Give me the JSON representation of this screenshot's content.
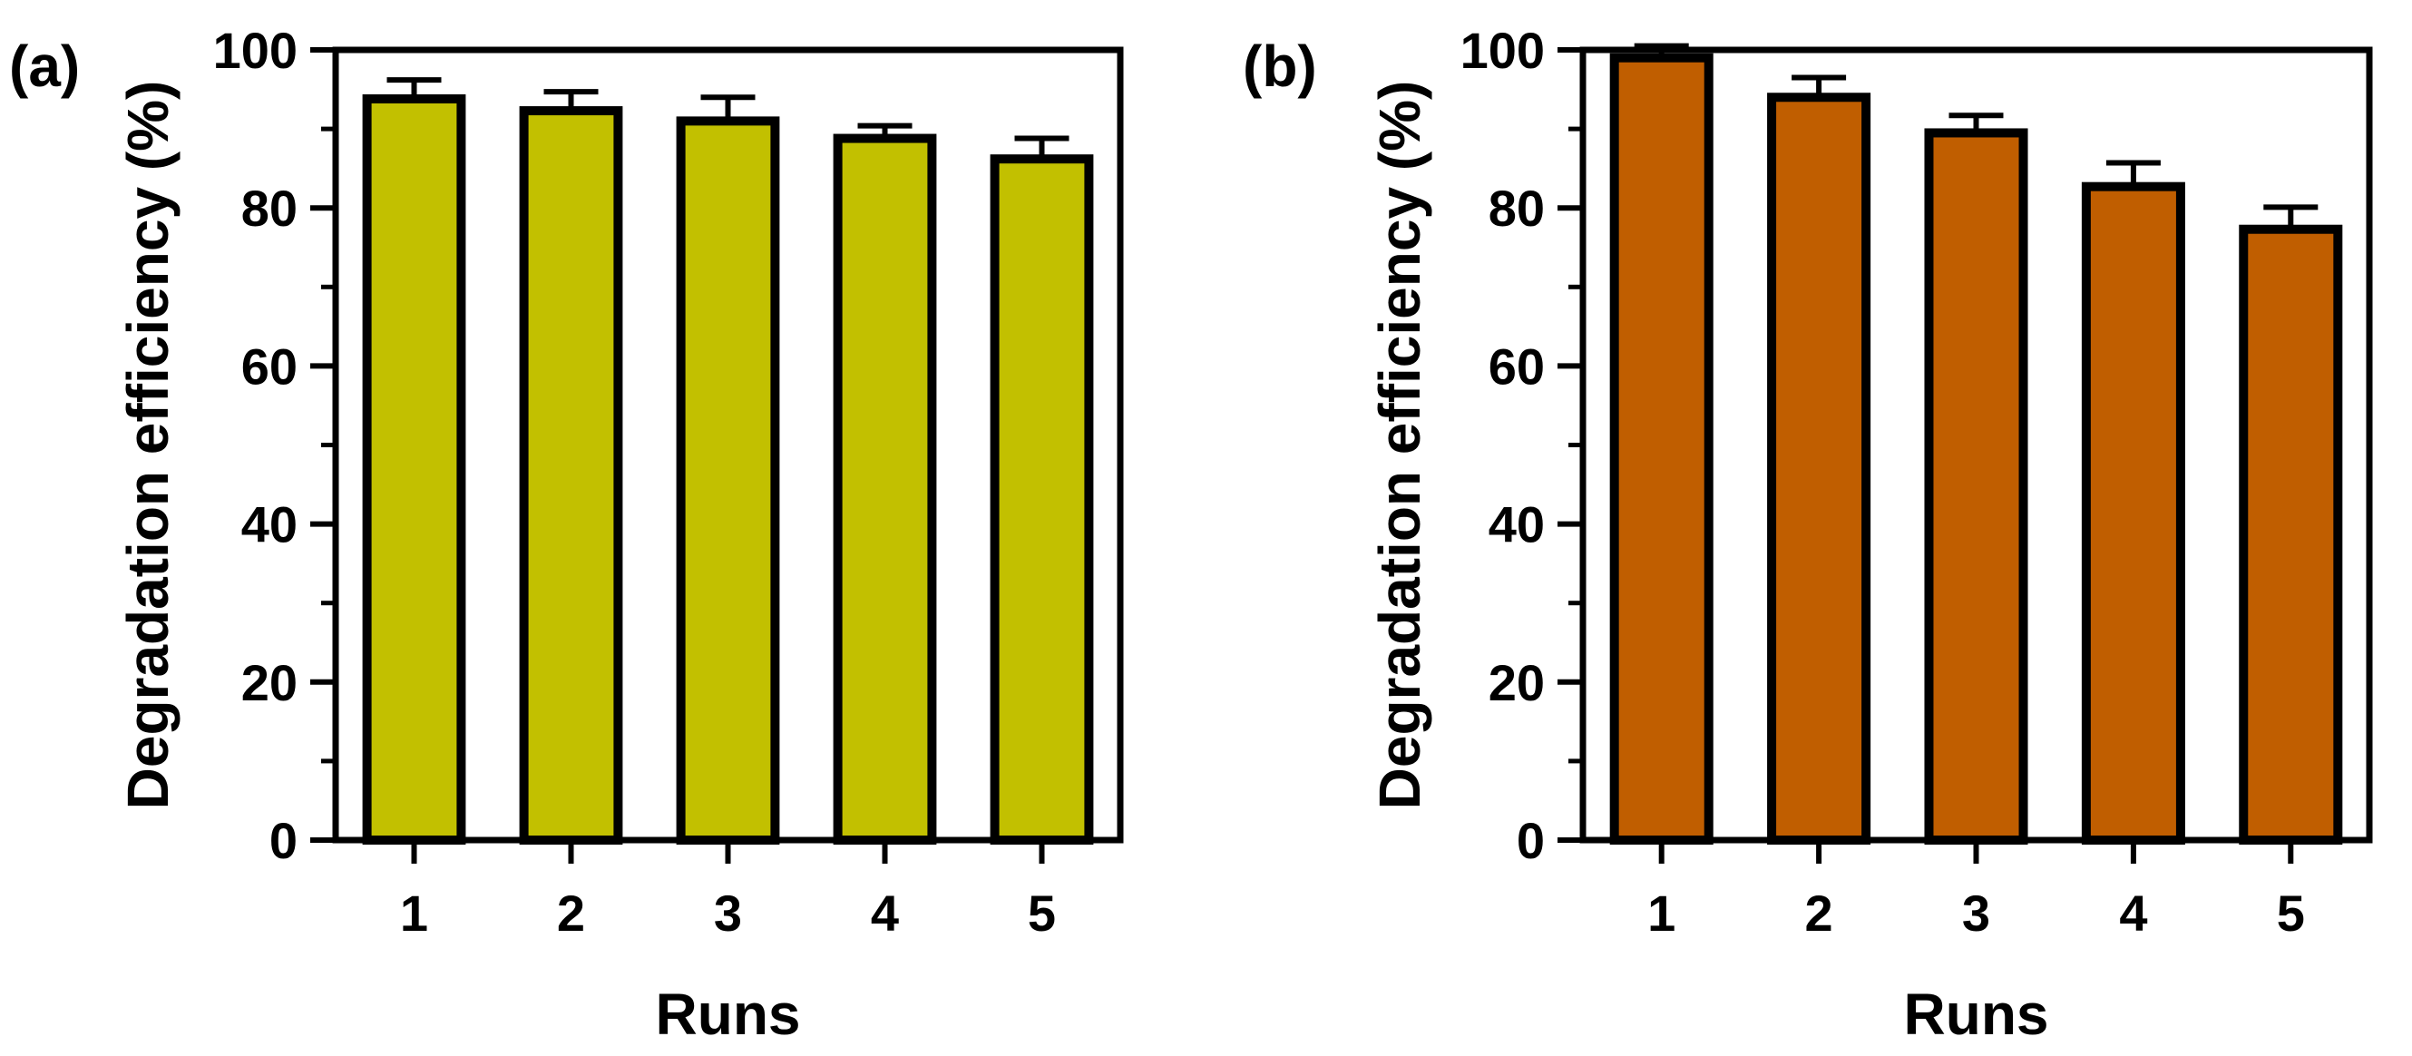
{
  "chart_data": [
    {
      "type": "bar",
      "panel_label": "(a)",
      "categories": [
        "1",
        "2",
        "3",
        "4",
        "5"
      ],
      "values": [
        93.8,
        92.3,
        91.0,
        88.8,
        86.2
      ],
      "errors": [
        2.4,
        2.4,
        3.0,
        1.6,
        2.6
      ],
      "ylabel": "Degradation efficiency (%)",
      "xlabel": "Runs",
      "ylim": [
        0,
        100
      ],
      "yticks": [
        "0",
        "20",
        "40",
        "60",
        "80",
        "100"
      ],
      "bar_color": "#c2c000"
    },
    {
      "type": "bar",
      "panel_label": "(b)",
      "categories": [
        "1",
        "2",
        "3",
        "4",
        "5"
      ],
      "values": [
        99.0,
        94.0,
        89.5,
        82.7,
        77.3
      ],
      "errors": [
        1.5,
        2.5,
        2.2,
        3.0,
        2.8
      ],
      "ylabel": "Degradation efficiency (%)",
      "xlabel": "Runs",
      "ylim": [
        0,
        100
      ],
      "yticks": [
        "0",
        "20",
        "40",
        "60",
        "80",
        "100"
      ],
      "bar_color": "#c05e00"
    }
  ]
}
